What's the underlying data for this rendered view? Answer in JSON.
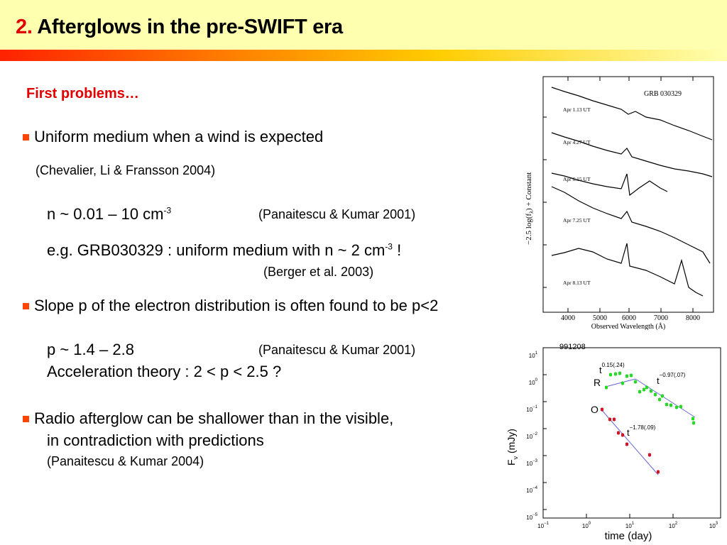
{
  "slide": {
    "title_number": "2.",
    "title_text": "Afterglows in the pre-SWIFT era",
    "subtitle": "First problems…",
    "bullet1": "Uniform medium when a wind is expected",
    "ref1": "(Chevalier, Li & Fransson 2004)",
    "line_n_a": "n ~ 0.01 – 10 cm",
    "line_n_sup": "-3",
    "ref2": "(Panaitescu & Kumar 2001)",
    "line_eg_a": "e.g. GRB030329 : uniform medium with n ~ 2 cm",
    "line_eg_sup": "-3",
    "line_eg_b": " !",
    "ref3": "(Berger et al. 2003)",
    "bullet2": "Slope p of the electron distribution is often found to be p<2",
    "line_p": "p ~ 1.4 – 2.8",
    "ref4": "(Panaitescu & Kumar 2001)",
    "line_acc": "Acceleration theory : 2 < p < 2.5 ?",
    "bullet3": "Radio afterglow can be shallower than in the visible,",
    "bullet3_cont": "in contradiction with predictions",
    "ref5": "(Panaitescu & Kumar 2004)"
  },
  "spectrum_figure": {
    "label": "GRB 030329",
    "ylabel": "−2.5 log(f",
    "ylabel_sub": "λ",
    "ylabel_end": ") + Constant",
    "xlabel": "Observed Wavelength (Å)",
    "xticks": [
      "4000",
      "5000",
      "6000",
      "7000",
      "8000"
    ],
    "series": [
      "Apr 1.13 UT",
      "Apr 4.27 UT",
      "Apr 6.15 UT",
      "Apr 7.25 UT",
      "Apr 8.13 UT"
    ]
  },
  "lightcurve_figure": {
    "label": "991208",
    "xlabel": "time (day)",
    "ylabel": "F",
    "ylabel_sub": "ν",
    "ylabel_end": " (mJy)",
    "band_R": "R",
    "band_O": "O",
    "t": "t",
    "slope_R1": "0.15(.24)",
    "slope_R2": "−0.97(.07)",
    "slope_O": "−1.78(.09)",
    "xticks": [
      "10",
      "10",
      "10",
      "10",
      "10"
    ],
    "xtick_exps": [
      "−1",
      "0",
      "1",
      "2",
      "3"
    ],
    "yticks": [
      "10",
      "10",
      "10",
      "10",
      "10",
      "10",
      "10"
    ],
    "ytick_exps": [
      "1",
      "0",
      "−1",
      "−2",
      "−3",
      "−4",
      "−5"
    ],
    "colors": {
      "R": "#22dd22",
      "O": "#dd1122",
      "fit": "#6666dd"
    }
  }
}
